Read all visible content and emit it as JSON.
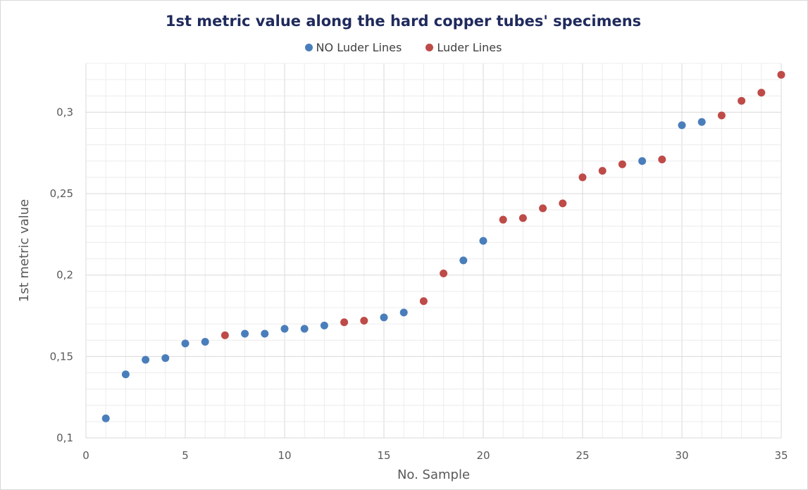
{
  "chart_data": {
    "type": "scatter",
    "title": "1st metric value along the hard copper tubes' specimens",
    "xlabel": "No. Sample",
    "ylabel": "1st metric value",
    "xlim": [
      0,
      35
    ],
    "ylim": [
      0.1,
      0.33
    ],
    "xticks": [
      "0",
      "5",
      "10",
      "15",
      "20",
      "25",
      "30",
      "35"
    ],
    "xtick_values": [
      0,
      5,
      10,
      15,
      20,
      25,
      30,
      35
    ],
    "yticks": [
      "0,1",
      "0,15",
      "0,2",
      "0,25",
      "0,3"
    ],
    "ytick_values": [
      0.1,
      0.15,
      0.2,
      0.25,
      0.3
    ],
    "grid": true,
    "legend_position": "top",
    "series": [
      {
        "name": "NO Luder Lines",
        "color": "#4a7ebb",
        "points": [
          [
            1,
            0.112
          ],
          [
            2,
            0.139
          ],
          [
            3,
            0.148
          ],
          [
            4,
            0.149
          ],
          [
            5,
            0.158
          ],
          [
            6,
            0.159
          ],
          [
            8,
            0.164
          ],
          [
            9,
            0.164
          ],
          [
            10,
            0.167
          ],
          [
            11,
            0.167
          ],
          [
            12,
            0.169
          ],
          [
            15,
            0.174
          ],
          [
            16,
            0.177
          ],
          [
            19,
            0.209
          ],
          [
            20,
            0.221
          ],
          [
            28,
            0.27
          ],
          [
            30,
            0.292
          ],
          [
            31,
            0.294
          ]
        ]
      },
      {
        "name": "Luder Lines",
        "color": "#be4b48",
        "points": [
          [
            7,
            0.163
          ],
          [
            13,
            0.171
          ],
          [
            14,
            0.172
          ],
          [
            17,
            0.184
          ],
          [
            18,
            0.201
          ],
          [
            21,
            0.234
          ],
          [
            22,
            0.235
          ],
          [
            23,
            0.241
          ],
          [
            24,
            0.244
          ],
          [
            25,
            0.26
          ],
          [
            26,
            0.264
          ],
          [
            27,
            0.268
          ],
          [
            29,
            0.271
          ],
          [
            32,
            0.298
          ],
          [
            33,
            0.307
          ],
          [
            34,
            0.312
          ],
          [
            35,
            0.323
          ]
        ]
      }
    ]
  }
}
